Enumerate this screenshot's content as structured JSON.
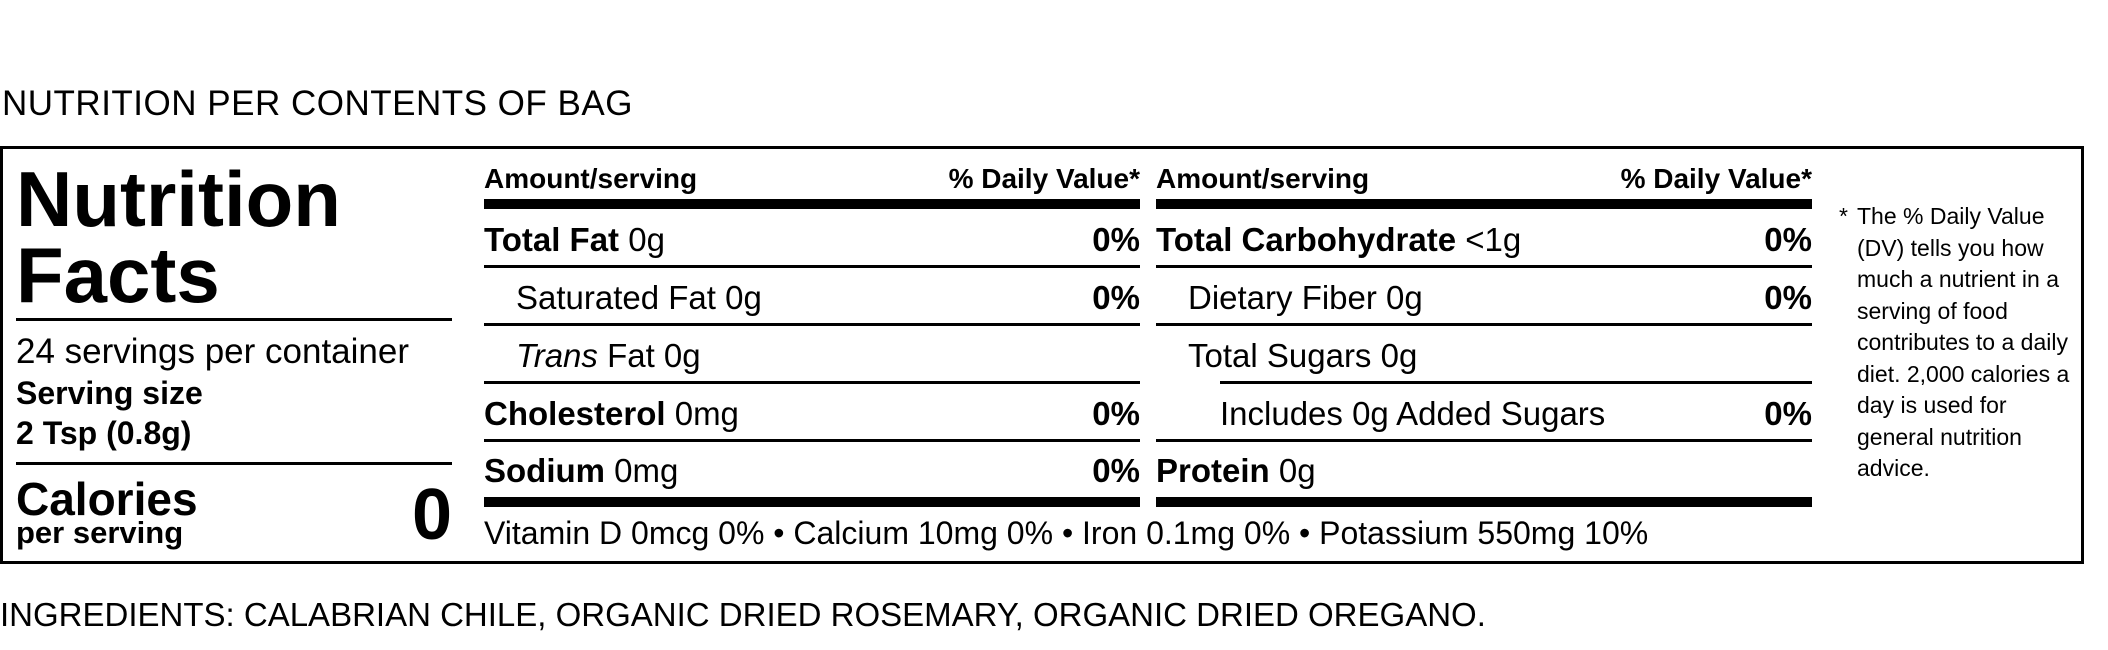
{
  "header_caption": "NUTRITION PER CONTENTS OF BAG",
  "label": {
    "title_line1": "Nutrition",
    "title_line2": "Facts",
    "servings_per_container": "24 servings per container",
    "serving_size_label": "Serving size",
    "serving_size_value": "2 Tsp (0.8g)",
    "calories_label": "Calories",
    "per_serving_label": "per serving",
    "calories_value": "0"
  },
  "table_left": {
    "amount_header": "Amount/serving",
    "dv_header": "% Daily Value*",
    "rows": [
      {
        "name_bold": "Total Fat",
        "name_rest": " 0g",
        "dv": "0%"
      },
      {
        "name_bold": "",
        "name_rest": "Saturated Fat 0g",
        "dv": "0%"
      },
      {
        "name_italic": "Trans",
        "name_rest": " Fat 0g",
        "dv": ""
      },
      {
        "name_bold": "Cholesterol",
        "name_rest": " 0mg",
        "dv": "0%"
      },
      {
        "name_bold": "Sodium",
        "name_rest": " 0mg",
        "dv": "0%"
      }
    ]
  },
  "table_right": {
    "amount_header": "Amount/serving",
    "dv_header": "% Daily Value*",
    "rows": [
      {
        "name_bold": "Total Carbohydrate",
        "name_rest": " <1g",
        "dv": "0%"
      },
      {
        "name_bold": "",
        "name_rest": "Dietary Fiber 0g",
        "dv": "0%"
      },
      {
        "name_bold": "",
        "name_rest": "Total Sugars 0g",
        "dv": ""
      },
      {
        "name_bold": "",
        "name_rest": "Includes 0g Added Sugars",
        "dv": "0%"
      },
      {
        "name_bold": "Protein",
        "name_rest": " 0g",
        "dv": ""
      }
    ]
  },
  "vitamins_line": "Vitamin D 0mcg 0% • Calcium 10mg 0% • Iron 0.1mg 0% • Potassium 550mg 10%",
  "footnote": {
    "star": "*",
    "text": "The % Daily Value (DV) tells you how much a nutrient in a serving of food contributes to a daily diet. 2,000 calories a day is used for general nutrition advice."
  },
  "ingredients": "INGREDIENTS: CALABRIAN CHILE, ORGANIC DRIED ROSEMARY, ORGANIC DRIED OREGANO."
}
